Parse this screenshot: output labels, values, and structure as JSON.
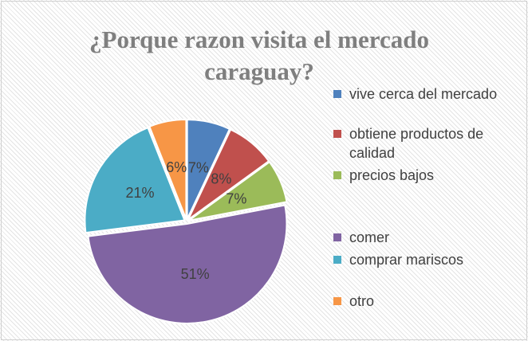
{
  "chart_data": {
    "type": "pie",
    "title": "¿Porque razon visita el mercado caraguay?",
    "categories": [
      "vive cerca del mercado",
      "obtiene productos de calidad",
      "precios bajos",
      "comer",
      "comprar mariscos",
      "otro"
    ],
    "values": [
      7,
      8,
      7,
      51,
      21,
      6
    ],
    "value_labels": [
      "7%",
      "8%",
      "7%",
      "51%",
      "21%",
      "6%"
    ],
    "colors": [
      "#4f81bd",
      "#c0504d",
      "#9bbb59",
      "#8064a2",
      "#4bacc6",
      "#f79646"
    ],
    "legend": "right"
  }
}
